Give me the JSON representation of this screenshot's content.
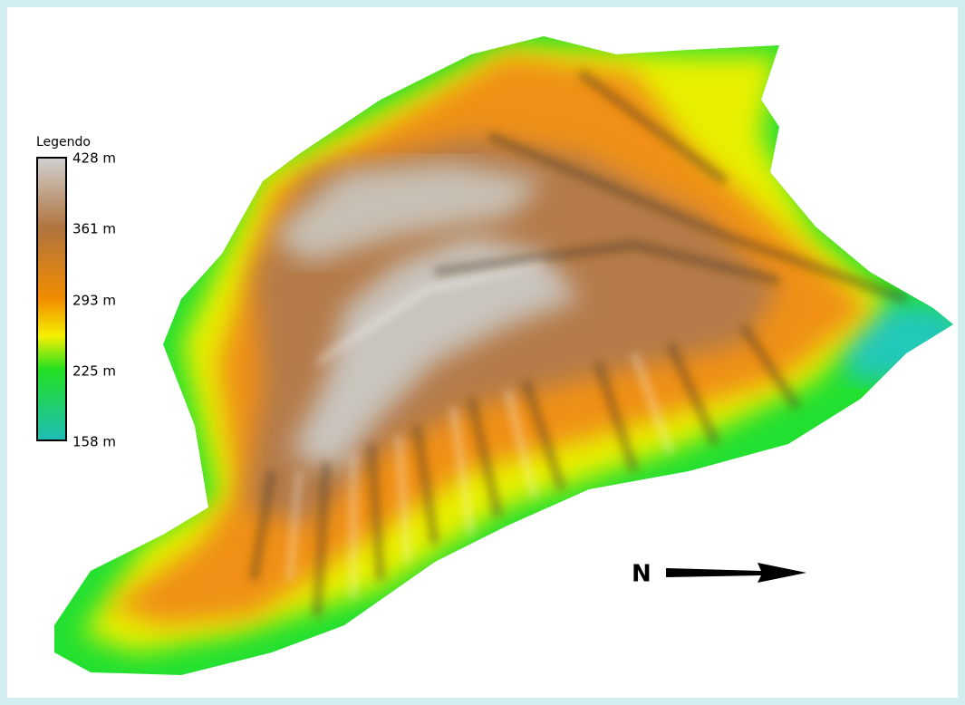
{
  "legend": {
    "title": "Legendo",
    "labels": [
      "428 m",
      "361 m",
      "293 m",
      "225 m",
      "158 m"
    ]
  },
  "north_label": "N"
}
